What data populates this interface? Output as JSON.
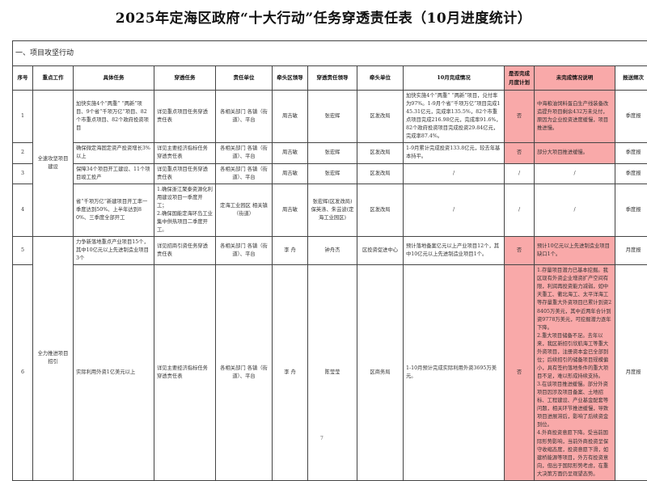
{
  "title": "2025年定海区政府“十大行动”任务穿透责任表（10月进度统计）",
  "section": "一、项目攻坚行动",
  "columns": [
    "序号",
    "重点工作",
    "具体任务",
    "穿透任务",
    "责任单位",
    "牵头区领导",
    "穿透责任领导",
    "牵头单位",
    "10月完成情况",
    "是否完成月度计划",
    "未完成情况说明",
    "报送频次"
  ],
  "groups": [
    "全速攻坚项目建设",
    "全力推进项目招引"
  ],
  "rows": [
    {
      "no": "1",
      "task": "加快实施4个“两重” “两新”项目、9个省“千项万亿”项目、82个市重点项目、82个政府投资项目",
      "sub": "详见重点项目任务穿透责任表",
      "unit": "各相关部门 各镇（街道）、平台",
      "leader": "周吉敏",
      "pleader": "张宏辉",
      "lead_unit": "区发改局",
      "progress": "加快实施4个“两重” “两新”项目，兑付率为97%。1-9月个省“千项万亿”项目完成145.31亿元，完成率135.5%，82个市重点项目完成216.98亿元，完成率91.6%，82个政府投资项目完成投资29.84亿元，完成率87.4%。",
      "done": "否",
      "reason": "中海粮油饲料蛋白生产线装备改造提升项目剩余432万未兑付，原因为企业投资进度缓慢，项目推进慢。",
      "freq": "季度报"
    },
    {
      "no": "2",
      "task": "确保微定海固定资产投资增长3%以上",
      "sub": "详见主要经济指标任务穿透责任表",
      "unit": "各相关部门 各镇（街道）、平台",
      "leader": "周吉敏",
      "pleader": "张宏辉",
      "lead_unit": "区发改局",
      "progress": "1-9月累计完成投资133.8亿元，较去年基本持平。",
      "done": "否",
      "reason": "部分大项目推进缓慢。",
      "freq": "季度报"
    },
    {
      "no": "3",
      "task": "保障34个项目开工建设、11个项目竣工投产",
      "sub": "详见重点项目任务穿透责任表",
      "unit": "各相关部门 各镇（街道）、平台",
      "leader": "周吉敏",
      "pleader": "张宏辉",
      "lead_unit": "区发改局",
      "progress": "/",
      "done": "/",
      "reason": "/",
      "freq": "季度报"
    },
    {
      "no": "4",
      "task": "省“千项万亿”新建项目开工率一季度达到50%、上半年达到80%、三季度全部开工",
      "sub": "1.确保浙江聚泰资源化利用建设项目一季度开工；\n2.确保国能定海环岛工业集中供热项目二季度开工。",
      "unit": "定海工业园区 相关镇（街道）",
      "leader": "周吉敏",
      "pleader": "张宏辉(区发改局)保英涤、朱芸波(定海工业园区)",
      "lead_unit": "区发改局",
      "progress": "/",
      "done": "/",
      "reason": "/",
      "freq": "季度报"
    },
    {
      "no": "5",
      "task": "力争新落地重点产业项目15个，其中10亿元以上先进制造业项目3个",
      "sub": "详见招商引资任务穿透责任表",
      "unit": "各相关部门 各镇（街道）、平台",
      "leader": "李 舟",
      "pleader": "钟舟杰",
      "lead_unit": "区投资促进中心",
      "progress": "预计落地备案亿元以上产业项目12个，其中10亿元以上先进制造业项目1个。",
      "done": "否",
      "reason": "预计10亿元以上先进制造业项目缺口1个。",
      "freq": "月度报"
    },
    {
      "no": "6",
      "task": "实际利用外资1亿美元以上",
      "sub": "详见主要经济指标任务穿透责任表",
      "unit": "各相关部门 各镇（街道）、平台",
      "leader": "李 舟",
      "pleader": "陈莹莹",
      "lead_unit": "区商务局",
      "progress": "1-10月预计完成实际利用外资3695万美元。",
      "done": "否",
      "reason": "1.存量项目潜力已基本挖掘。我区现有外资企业增资扩产空间有限，利润再投资能力减弱，如中天重工、衢北海工、太平洋海工等存量重大外资项目已累计到资28405万美元，其中近两年合计到资9778万美元，可挖掘潜力逐年下降。\n2.重大项目储备不足。去年以来，我区新招引欣航海工等重大外资项目，注册资本金已全部到位；后续招引的储备项目规模偏小，具有签约落地条件的重大项目不足，难以形成持续支持。\n3.在谈项目推进缓慢。部分外资项目因涉及项目备案、土地招标、工程建设、产业基金配套等问题，相关环节推进缓慢，导致项目进展滞后，影响了后续资金到位。\n4.外商投资意愿下降。受当前国际形势影响，当前外商投资呈保守收缩态度，投资意愿下滑，如建桥能源等项目，外方有投资意向，但出于国际形势考虑，在重大决策方面仍呈观望态势。",
      "freq": "月度报"
    }
  ],
  "page_number": "7",
  "colors": {
    "highlight": "#f9a9a9"
  }
}
